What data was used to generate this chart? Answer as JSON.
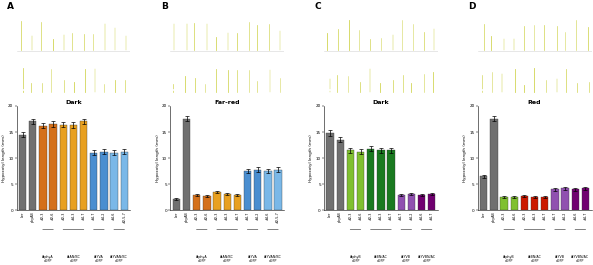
{
  "panels": [
    {
      "label": "A",
      "title": "Dark",
      "group_labels": [
        "AtphyA\naGFP",
        "AtAN/BC\naGFP",
        "AtYVA\naGFP",
        "AtYVAN/BC\naGFP"
      ],
      "group_ranges": [
        [
          2,
          3
        ],
        [
          4,
          6
        ],
        [
          7,
          8
        ],
        [
          9,
          10
        ]
      ],
      "x_labels": [
        "Ler",
        "phyAB",
        "#2-3",
        "#2-6",
        "#2-3",
        "#4-3",
        "#4-7",
        "#4-7",
        "#4-2",
        "#4-6",
        "#2-5-7"
      ],
      "values": [
        14.5,
        17.0,
        16.2,
        16.5,
        16.4,
        16.3,
        17.0,
        11.0,
        11.2,
        11.0,
        11.2
      ],
      "errors": [
        0.4,
        0.5,
        0.5,
        0.5,
        0.5,
        0.5,
        0.5,
        0.5,
        0.5,
        0.5,
        0.5
      ],
      "colors": [
        "#707070",
        "#707070",
        "#d4701a",
        "#d4701a",
        "#e8a020",
        "#e8a020",
        "#e8a020",
        "#4a8ed0",
        "#4a8ed0",
        "#7ab8e8",
        "#7ab8e8"
      ],
      "ylim": [
        0,
        20
      ],
      "yticks": [
        0,
        5,
        10,
        15,
        20
      ],
      "ylabel": "Hypocotyl length (mm)",
      "photo_bg": "#7a8a90",
      "photo_plant_color": "#c8cc30",
      "photo_rows": 2
    },
    {
      "label": "B",
      "title": "Far-red",
      "group_labels": [
        "AtphyA\naGFP",
        "AtAN/BC\naGFP",
        "AtYVA\naGFP",
        "AtYVAN/BC\naGFP"
      ],
      "group_ranges": [
        [
          2,
          3
        ],
        [
          4,
          6
        ],
        [
          7,
          8
        ],
        [
          9,
          10
        ]
      ],
      "x_labels": [
        "Ler",
        "phyAB",
        "#2-3",
        "#2-6",
        "#2-3",
        "#4-3",
        "#4-7",
        "#4-7",
        "#4-2",
        "#4-6",
        "#2-5-7"
      ],
      "values": [
        2.2,
        17.5,
        3.0,
        2.8,
        3.5,
        3.2,
        3.0,
        7.5,
        7.8,
        7.5,
        7.8
      ],
      "errors": [
        0.2,
        0.5,
        0.2,
        0.2,
        0.2,
        0.2,
        0.2,
        0.4,
        0.4,
        0.4,
        0.4
      ],
      "colors": [
        "#707070",
        "#707070",
        "#d4701a",
        "#d4701a",
        "#e8a020",
        "#e8a020",
        "#e8a020",
        "#4a8ed0",
        "#4a8ed0",
        "#7ab8e8",
        "#7ab8e8"
      ],
      "ylim": [
        0,
        20
      ],
      "yticks": [
        0,
        5,
        10,
        15,
        20
      ],
      "ylabel": "Hypocotyl length (mm)",
      "photo_bg": "#6a7878",
      "photo_plant_color": "#c8cc30",
      "photo_rows": 2
    },
    {
      "label": "C",
      "title": "Dark",
      "group_labels": [
        "AtphyB\naGFP",
        "AtBN/AC\naGFP",
        "AtYVB\naGFP",
        "AtYVBN/AC\naGFP"
      ],
      "group_ranges": [
        [
          2,
          3
        ],
        [
          4,
          6
        ],
        [
          7,
          8
        ],
        [
          9,
          10
        ]
      ],
      "x_labels": [
        "Ler",
        "phyAB",
        "#2-3",
        "#4-6",
        "#2-3",
        "#4-3",
        "#4-7",
        "#4-7",
        "#4-2",
        "#4-6",
        "#4-7"
      ],
      "values": [
        14.8,
        13.5,
        11.5,
        11.2,
        11.8,
        11.5,
        11.5,
        3.0,
        3.2,
        3.0,
        3.2
      ],
      "errors": [
        0.5,
        0.5,
        0.5,
        0.5,
        0.5,
        0.5,
        0.5,
        0.2,
        0.2,
        0.2,
        0.2
      ],
      "colors": [
        "#707070",
        "#707070",
        "#80c030",
        "#80c030",
        "#1a7a20",
        "#1a7a20",
        "#1a7a20",
        "#9050b0",
        "#9050b0",
        "#700070",
        "#700070"
      ],
      "ylim": [
        0,
        20
      ],
      "yticks": [
        0,
        5,
        10,
        15,
        20
      ],
      "ylabel": "Hypocotyl length (mm)",
      "photo_bg": "#7a8a90",
      "photo_plant_color": "#c8cc30",
      "photo_rows": 2
    },
    {
      "label": "D",
      "title": "Red",
      "group_labels": [
        "AtphyB\naGFP",
        "AtBN/AC\naGFP",
        "AtYVB\naGFP",
        "AtYVBN/AC\naGFP"
      ],
      "group_ranges": [
        [
          2,
          3
        ],
        [
          4,
          6
        ],
        [
          7,
          8
        ],
        [
          9,
          10
        ]
      ],
      "x_labels": [
        "Ler",
        "phyAB",
        "#2-3",
        "#4-6",
        "#2-3",
        "#4-3",
        "#4-7",
        "#4-7",
        "#4-2",
        "#4-6",
        "#4-7"
      ],
      "values": [
        6.5,
        17.5,
        2.5,
        2.5,
        2.8,
        2.5,
        2.5,
        4.0,
        4.2,
        4.0,
        4.2
      ],
      "errors": [
        0.3,
        0.5,
        0.2,
        0.2,
        0.2,
        0.2,
        0.2,
        0.3,
        0.3,
        0.3,
        0.3
      ],
      "colors": [
        "#707070",
        "#707070",
        "#80c030",
        "#80c030",
        "#cc1a00",
        "#cc1a00",
        "#cc1a00",
        "#9050b0",
        "#9050b0",
        "#700070",
        "#700070"
      ],
      "ylim": [
        0,
        20
      ],
      "yticks": [
        0,
        5,
        10,
        15,
        20
      ],
      "ylabel": "Hypocotyl length (mm)",
      "photo_bg": "#6a7060",
      "photo_plant_color": "#c8cc30",
      "photo_rows": 2
    }
  ],
  "figure_width": 6.15,
  "figure_height": 2.17
}
